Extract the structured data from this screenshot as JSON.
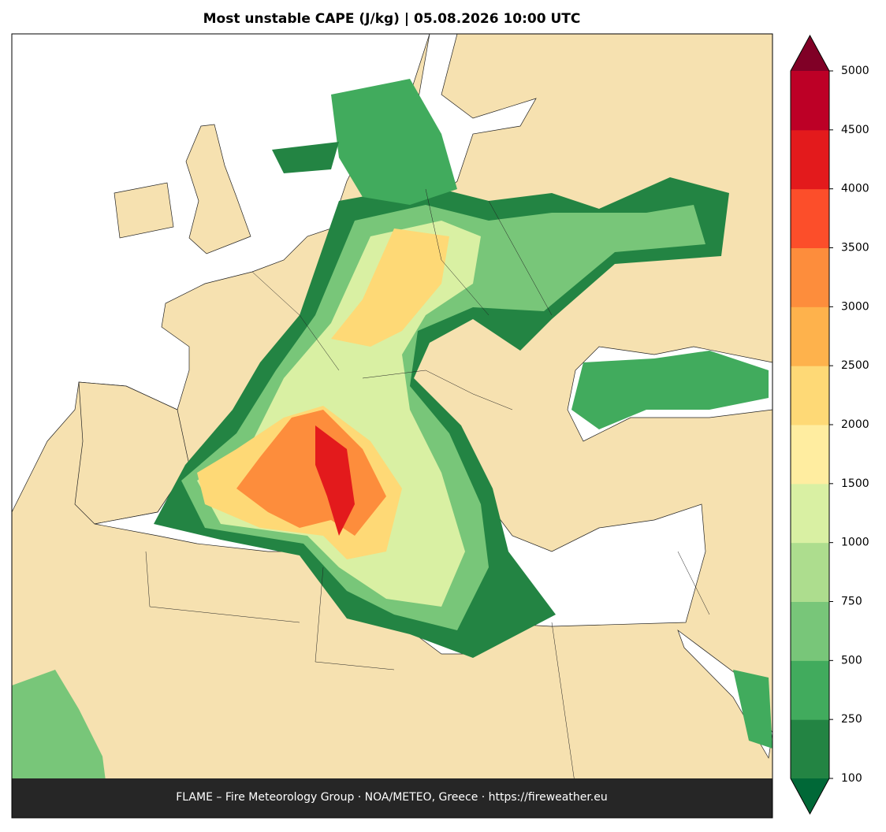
{
  "title": "Most unstable CAPE (J/kg)  |  05.08.2026 10:00 UTC",
  "footer": "FLAME – Fire Meteorology Group · NOA/METEO, Greece · https://fireweather.eu",
  "colorbar": {
    "levels": [
      100,
      250,
      500,
      750,
      1000,
      1500,
      2000,
      2500,
      3000,
      3500,
      4000,
      4500,
      5000
    ],
    "colors": [
      "#238443",
      "#41ab5d",
      "#78c679",
      "#addd8e",
      "#d9f0a3",
      "#ffeda0",
      "#fed976",
      "#feb24c",
      "#fd8d3c",
      "#fc4e2a",
      "#e31a1c",
      "#bd0026"
    ],
    "under_color": "#006837",
    "over_color": "#800026"
  }
}
